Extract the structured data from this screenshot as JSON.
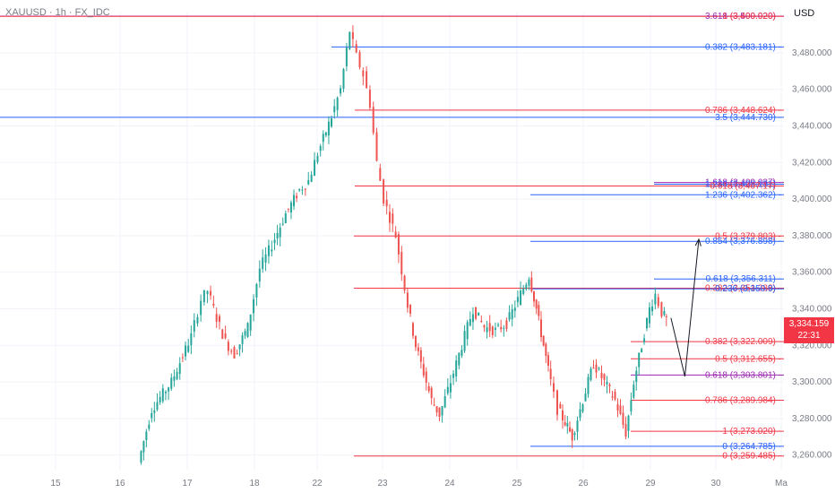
{
  "header": {
    "symbol": "XAUUSD · 1h · FX_IDC",
    "currency": "USD"
  },
  "price_badge": {
    "price": "3,334.159",
    "countdown": "22:31"
  },
  "colors": {
    "bull": "#26a69a",
    "bear": "#ef5350",
    "fib_red": "#f23645",
    "fib_blue": "#2962ff",
    "fib_purple": "#9c27b0",
    "grid": "#f0f3fa"
  },
  "chart_data": {
    "type": "candlestick",
    "title": "",
    "xlabel": "",
    "ylabel": "",
    "ylim": [
      3252,
      3502
    ],
    "y_ticks": [
      3260,
      3280,
      3300,
      3320,
      3340,
      3360,
      3380,
      3400,
      3420,
      3440,
      3460,
      3480
    ],
    "y_tick_labels": [
      "3,260.000",
      "3,280.000",
      "3,300.000",
      "3,320.000",
      "3,340.000",
      "3,360.000",
      "3,380.000",
      "3,400.000",
      "3,420.000",
      "3,440.000",
      "3,460.000",
      "3,480.000"
    ],
    "x_ticks": [
      "15",
      "16",
      "17",
      "18",
      "22",
      "23",
      "24",
      "25",
      "26",
      "29",
      "30",
      "Ma"
    ],
    "grid": true,
    "price_path": [
      [
        16.3,
        3256
      ],
      [
        16.5,
        3285
      ],
      [
        16.8,
        3300
      ],
      [
        17.1,
        3325
      ],
      [
        17.25,
        3345
      ],
      [
        17.4,
        3350
      ],
      [
        17.6,
        3335
      ],
      [
        17.8,
        3322
      ],
      [
        18.0,
        3315
      ],
      [
        18.3,
        3330
      ],
      [
        18.55,
        3362
      ],
      [
        18.8,
        3375
      ],
      [
        19.1,
        3392
      ],
      [
        19.4,
        3405
      ],
      [
        19.6,
        3410
      ],
      [
        19.8,
        3425
      ],
      [
        20.1,
        3445
      ],
      [
        20.3,
        3460
      ],
      [
        20.5,
        3492
      ],
      [
        20.7,
        3478
      ],
      [
        20.9,
        3468
      ],
      [
        21.1,
        3452
      ],
      [
        21.3,
        3420
      ],
      [
        21.5,
        3400
      ],
      [
        21.8,
        3380
      ],
      [
        22.1,
        3342
      ],
      [
        22.3,
        3320
      ],
      [
        22.5,
        3305
      ],
      [
        22.7,
        3290
      ],
      [
        22.9,
        3282
      ],
      [
        23.1,
        3300
      ],
      [
        23.3,
        3320
      ],
      [
        23.5,
        3340
      ],
      [
        23.7,
        3330
      ],
      [
        23.9,
        3328
      ],
      [
        24.1,
        3332
      ],
      [
        24.3,
        3345
      ],
      [
        24.5,
        3358
      ],
      [
        24.7,
        3340
      ],
      [
        24.9,
        3320
      ],
      [
        25.1,
        3300
      ],
      [
        25.3,
        3285
      ],
      [
        25.5,
        3278
      ],
      [
        25.7,
        3270
      ],
      [
        25.9,
        3290
      ],
      [
        26.1,
        3310
      ],
      [
        26.3,
        3300
      ],
      [
        26.5,
        3290
      ],
      [
        26.7,
        3272
      ],
      [
        26.9,
        3300
      ],
      [
        27.1,
        3320
      ],
      [
        27.3,
        3340
      ],
      [
        27.45,
        3348
      ],
      [
        27.6,
        3338
      ],
      [
        27.7,
        3334
      ]
    ],
    "projection_arrow": [
      [
        27.75,
        3335
      ],
      [
        27.95,
        3303
      ],
      [
        28.15,
        3378
      ]
    ],
    "fib_levels": [
      {
        "label": "3.618 (3,500.020)",
        "price": 3500.02,
        "color": "#9c27b0"
      },
      {
        "label": "1 (3,499.920)",
        "price": 3499.92,
        "color": "#f23645"
      },
      {
        "label": "0.382 (3,483.181)",
        "price": 3483.181,
        "color": "#2962ff"
      },
      {
        "label": "0.786 (3,448.624)",
        "price": 3448.624,
        "color": "#f23645"
      },
      {
        "label": "3.5 (3,444.730)",
        "price": 3444.73,
        "color": "#2962ff"
      },
      {
        "label": "1.618 (3,409.037)",
        "price": 3409.037,
        "color": "#9c27b0"
      },
      {
        "label": "1.236 (3,408.131)",
        "price": 3408.131,
        "color": "#2962ff"
      },
      {
        "label": "0.618 (3,407.17)",
        "price": 3407.17,
        "color": "#f23645"
      },
      {
        "label": "1.236 (3,402.362)",
        "price": 3402.362,
        "color": "#2962ff"
      },
      {
        "label": "0.5 (3,379.803)",
        "price": 3379.803,
        "color": "#f23645"
      },
      {
        "label": "0.854 (3,376.898)",
        "price": 3376.898,
        "color": "#2962ff"
      },
      {
        "label": "0.618 (3,356.311)",
        "price": 3356.311,
        "color": "#2962ff"
      },
      {
        "label": "0.382 (3,351.288)",
        "price": 3351.288,
        "color": "#f23645"
      },
      {
        "label": "0.236 (3,350.9)",
        "price": 3350.9,
        "color": "#2962ff"
      },
      {
        "label": "0.382 (3,322.009)",
        "price": 3322.009,
        "color": "#f23645"
      },
      {
        "label": "0.5 (3,312.655)",
        "price": 3312.655,
        "color": "#f23645"
      },
      {
        "label": "0.618 (3,303.801)",
        "price": 3303.801,
        "color": "#9c27b0"
      },
      {
        "label": "0.786 (3,289.984)",
        "price": 3289.984,
        "color": "#f23645"
      },
      {
        "label": "1 (3,273.020)",
        "price": 3273.02,
        "color": "#f23645"
      },
      {
        "label": "0 (3,264.785)",
        "price": 3264.785,
        "color": "#2962ff"
      },
      {
        "label": "0 (3,259.485)",
        "price": 3259.485,
        "color": "#f23645"
      }
    ]
  }
}
